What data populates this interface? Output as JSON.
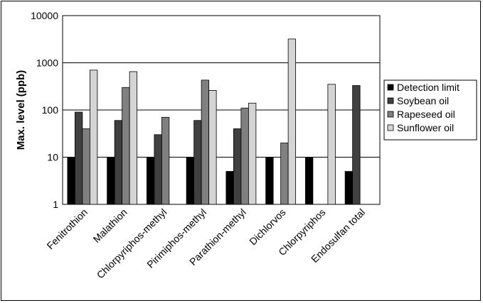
{
  "chart_data": {
    "type": "bar",
    "title": "",
    "xlabel": "",
    "ylabel": "Max. level (ppb)",
    "y_scale": "log",
    "ylim": [
      1,
      10000
    ],
    "yticks": [
      "1",
      "10",
      "100",
      "1000",
      "10000"
    ],
    "grid": "horizontal major lines",
    "legend_position": "right",
    "categories": [
      "Fenitrothion",
      "Malathion",
      "Chlorpyriphos-methyl",
      "Pirimiphos-methyl",
      "Parathion-methyl",
      "Dichlorvos",
      "Chlorpyriphos",
      "Endosulfan total"
    ],
    "series": [
      {
        "name": "Detection limit",
        "color": "#000000",
        "values": [
          10,
          10,
          10,
          10,
          5,
          10,
          10,
          5
        ]
      },
      {
        "name": "Soybean oil",
        "color": "#404040",
        "values": [
          90,
          60,
          30,
          60,
          40,
          null,
          null,
          330
        ]
      },
      {
        "name": "Rapeseed oil",
        "color": "#808080",
        "values": [
          40,
          300,
          70,
          430,
          110,
          20,
          null,
          null
        ]
      },
      {
        "name": "Sunflower oil",
        "color": "#d4d4d4",
        "values": [
          700,
          650,
          null,
          260,
          140,
          3200,
          350,
          null
        ]
      }
    ]
  }
}
